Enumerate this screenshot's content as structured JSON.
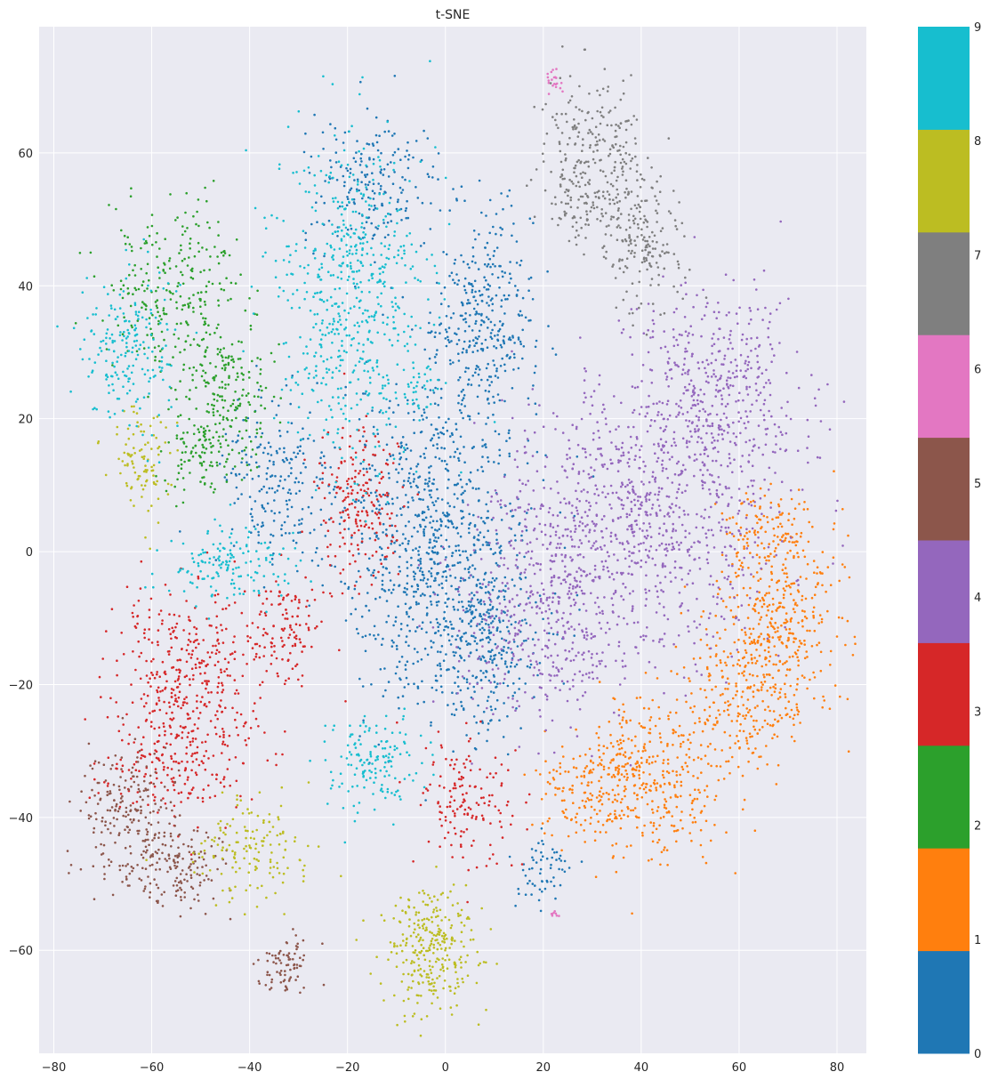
{
  "chart_data": {
    "type": "scatter",
    "title": "t-SNE",
    "xlabel": "",
    "ylabel": "",
    "xlim": [
      -83,
      86
    ],
    "ylim": [
      -75.5,
      79
    ],
    "x_ticks": [
      -80,
      -60,
      -40,
      -20,
      0,
      20,
      40,
      60,
      80
    ],
    "y_ticks": [
      -60,
      -40,
      -20,
      0,
      20,
      40,
      60
    ],
    "x_tick_labels": [
      "−80",
      "−60",
      "−40",
      "−20",
      "0",
      "20",
      "40",
      "60",
      "80"
    ],
    "y_tick_labels": [
      "−60",
      "−40",
      "−20",
      "0",
      "20",
      "40",
      "60"
    ],
    "grid": true,
    "colorbar": {
      "range": [
        0,
        9
      ],
      "labels": [
        "0",
        "1",
        "2",
        "3",
        "4",
        "5",
        "6",
        "7",
        "8",
        "9"
      ],
      "colors": [
        "#1f77b4",
        "#ff7f0e",
        "#2ca02c",
        "#d62728",
        "#9467bd",
        "#8c564b",
        "#e377c2",
        "#7f7f7f",
        "#bcbd22",
        "#17becf"
      ]
    },
    "clusters": [
      {
        "label": 0,
        "cx": -2,
        "cy": 2,
        "sx": 10,
        "sy": 12,
        "n": 900
      },
      {
        "label": 0,
        "cx": 8,
        "cy": 35,
        "sx": 5,
        "sy": 8,
        "n": 350
      },
      {
        "label": 0,
        "cx": -15,
        "cy": 55,
        "sx": 7,
        "sy": 5,
        "n": 200
      },
      {
        "label": 0,
        "cx": 8,
        "cy": -15,
        "sx": 6,
        "sy": 6,
        "n": 250
      },
      {
        "label": 0,
        "cx": -35,
        "cy": 10,
        "sx": 6,
        "sy": 7,
        "n": 200
      },
      {
        "label": 0,
        "cx": 20,
        "cy": -48,
        "sx": 3,
        "sy": 3,
        "n": 60
      },
      {
        "label": 1,
        "cx": 42,
        "cy": -35,
        "sx": 8,
        "sy": 6,
        "n": 350
      },
      {
        "label": 1,
        "cx": 68,
        "cy": -10,
        "sx": 6,
        "sy": 8,
        "n": 400
      },
      {
        "label": 1,
        "cx": 60,
        "cy": -22,
        "sx": 6,
        "sy": 6,
        "n": 200
      },
      {
        "label": 1,
        "cx": 30,
        "cy": -35,
        "sx": 5,
        "sy": 4,
        "n": 150
      },
      {
        "label": 1,
        "cx": 65,
        "cy": 3,
        "sx": 5,
        "sy": 3,
        "n": 100
      },
      {
        "label": 2,
        "cx": -55,
        "cy": 40,
        "sx": 7,
        "sy": 6,
        "n": 250
      },
      {
        "label": 2,
        "cx": -45,
        "cy": 25,
        "sx": 5,
        "sy": 5,
        "n": 200
      },
      {
        "label": 2,
        "cx": -50,
        "cy": 15,
        "sx": 4,
        "sy": 3,
        "n": 100
      },
      {
        "label": 3,
        "cx": -52,
        "cy": -18,
        "sx": 8,
        "sy": 6,
        "n": 350
      },
      {
        "label": 3,
        "cx": -55,
        "cy": -32,
        "sx": 8,
        "sy": 4,
        "n": 200
      },
      {
        "label": 3,
        "cx": -18,
        "cy": 8,
        "sx": 4,
        "sy": 6,
        "n": 200
      },
      {
        "label": 3,
        "cx": 5,
        "cy": -38,
        "sx": 5,
        "sy": 5,
        "n": 150
      },
      {
        "label": 3,
        "cx": -33,
        "cy": -12,
        "sx": 4,
        "sy": 4,
        "n": 120
      },
      {
        "label": 4,
        "cx": 40,
        "cy": 5,
        "sx": 14,
        "sy": 10,
        "n": 900
      },
      {
        "label": 4,
        "cx": 55,
        "cy": 25,
        "sx": 9,
        "sy": 7,
        "n": 400
      },
      {
        "label": 4,
        "cx": 20,
        "cy": -10,
        "sx": 10,
        "sy": 8,
        "n": 400
      },
      {
        "label": 5,
        "cx": -65,
        "cy": -40,
        "sx": 5,
        "sy": 5,
        "n": 200
      },
      {
        "label": 5,
        "cx": -55,
        "cy": -47,
        "sx": 5,
        "sy": 3,
        "n": 150
      },
      {
        "label": 5,
        "cx": -33,
        "cy": -62,
        "sx": 3,
        "sy": 2,
        "n": 80
      },
      {
        "label": 6,
        "cx": 22,
        "cy": 71,
        "sx": 1,
        "sy": 1,
        "n": 20
      },
      {
        "label": 6,
        "cx": 22,
        "cy": -54,
        "sx": 0.6,
        "sy": 0.6,
        "n": 8
      },
      {
        "label": 7,
        "cx": 30,
        "cy": 58,
        "sx": 5,
        "sy": 6,
        "n": 300
      },
      {
        "label": 7,
        "cx": 40,
        "cy": 47,
        "sx": 4,
        "sy": 5,
        "n": 180
      },
      {
        "label": 8,
        "cx": -3,
        "cy": -60,
        "sx": 5,
        "sy": 5,
        "n": 300
      },
      {
        "label": 8,
        "cx": -62,
        "cy": 12,
        "sx": 3,
        "sy": 5,
        "n": 100
      },
      {
        "label": 8,
        "cx": -40,
        "cy": -45,
        "sx": 6,
        "sy": 4,
        "n": 150
      },
      {
        "label": 9,
        "cx": -20,
        "cy": 38,
        "sx": 8,
        "sy": 12,
        "n": 600
      },
      {
        "label": 9,
        "cx": -65,
        "cy": 30,
        "sx": 5,
        "sy": 6,
        "n": 200
      },
      {
        "label": 9,
        "cx": -45,
        "cy": -2,
        "sx": 6,
        "sy": 3,
        "n": 150
      },
      {
        "label": 9,
        "cx": -15,
        "cy": -32,
        "sx": 5,
        "sy": 4,
        "n": 150
      },
      {
        "label": 9,
        "cx": -5,
        "cy": 25,
        "sx": 2,
        "sy": 2,
        "n": 30
      }
    ]
  }
}
